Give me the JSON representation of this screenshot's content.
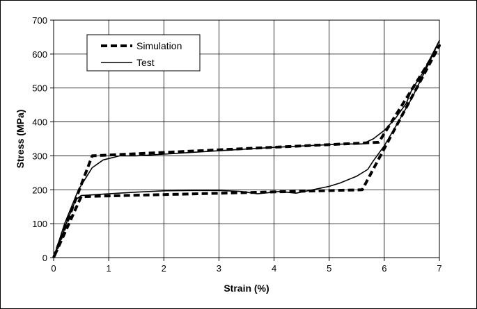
{
  "chart_data": {
    "type": "line",
    "title": "",
    "xlabel": "Strain (%)",
    "ylabel": "Stress (MPa)",
    "xlim": [
      0,
      7
    ],
    "ylim": [
      0,
      700
    ],
    "x_ticks": [
      "0",
      "1",
      "2",
      "3",
      "4",
      "5",
      "6",
      "7"
    ],
    "y_ticks": [
      "0",
      "100",
      "200",
      "300",
      "400",
      "500",
      "600",
      "700"
    ],
    "grid": true,
    "legend_position": "top-left",
    "series": [
      {
        "name": "Simulation",
        "style": "dashed",
        "color": "#000000",
        "x": [
          0,
          0.7,
          5.9,
          7.0,
          5.6,
          0.5,
          0
        ],
        "y": [
          0,
          300,
          340,
          625,
          200,
          180,
          0
        ]
      },
      {
        "name": "Test",
        "style": "solid",
        "color": "#000000",
        "x": [
          0,
          0.2,
          0.45,
          0.7,
          0.9,
          1.2,
          1.5,
          2.0,
          3.0,
          4.0,
          5.0,
          5.3,
          5.6,
          5.8,
          6.0,
          6.2,
          6.4,
          6.5,
          6.7,
          7.0,
          6.8,
          6.5,
          6.2,
          6.0,
          5.8,
          5.7,
          5.5,
          5.2,
          5.0,
          4.7,
          4.4,
          4.1,
          3.7,
          3.4,
          3.0,
          2.5,
          2.0,
          1.5,
          1.0,
          0.5,
          0.4,
          0.25,
          0.1,
          0
        ],
        "y": [
          0,
          100,
          200,
          265,
          288,
          300,
          300,
          305,
          315,
          325,
          333,
          335,
          335,
          350,
          375,
          410,
          455,
          495,
          545,
          640,
          570,
          470,
          385,
          330,
          285,
          260,
          240,
          220,
          210,
          200,
          190,
          195,
          188,
          195,
          198,
          198,
          197,
          193,
          188,
          183,
          170,
          110,
          40,
          0
        ]
      }
    ]
  }
}
